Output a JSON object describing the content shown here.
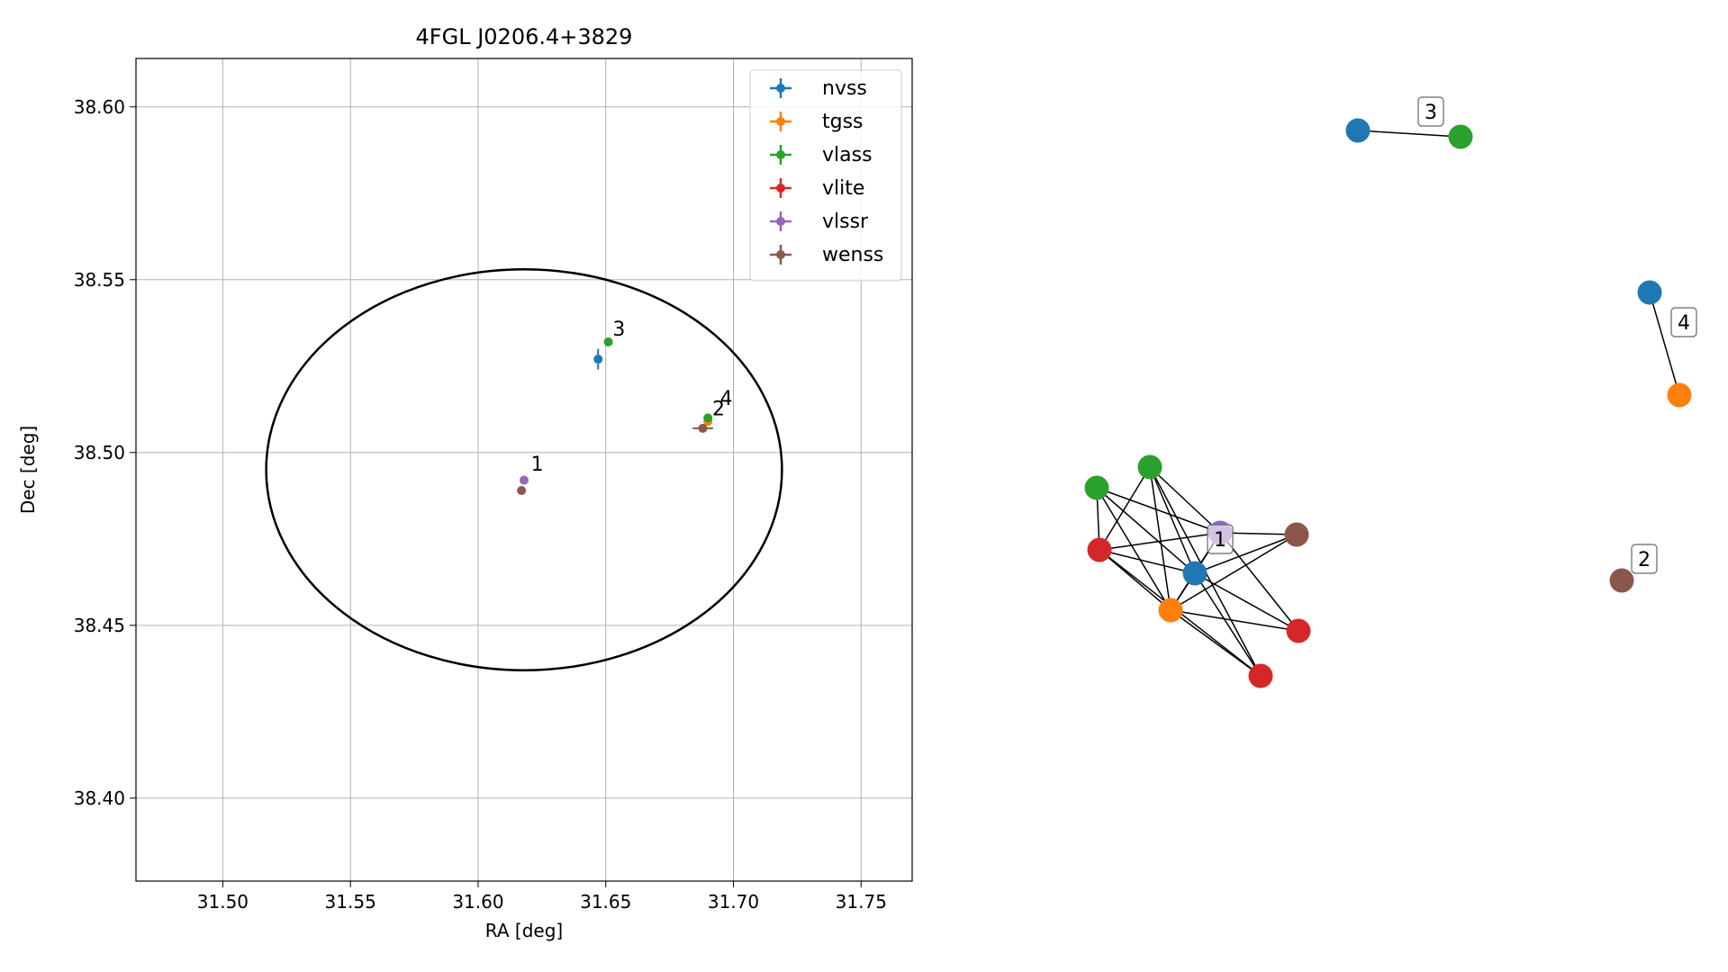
{
  "chart_data": [
    {
      "type": "scatter",
      "title": "4FGL J0206.4+3829",
      "xlabel": "RA [deg]",
      "ylabel": "Dec [deg]",
      "xlim": [
        31.466,
        31.77
      ],
      "ylim": [
        38.376,
        38.614
      ],
      "xticks": [
        31.5,
        31.55,
        31.6,
        31.65,
        31.7,
        31.75
      ],
      "xtick_labels": [
        "31.50",
        "31.55",
        "31.60",
        "31.65",
        "31.70",
        "31.75"
      ],
      "yticks": [
        38.4,
        38.45,
        38.5,
        38.55,
        38.6
      ],
      "ytick_labels": [
        "38.40",
        "38.45",
        "38.50",
        "38.55",
        "38.60"
      ],
      "grid": true,
      "legend_position": "top-right",
      "ellipse": {
        "center": [
          31.618,
          38.495
        ],
        "semi_axis_ra": 0.101,
        "semi_axis_dec": 0.058,
        "color": "#000000"
      },
      "series": [
        {
          "name": "nvss",
          "color": "#1f77b4",
          "points": [
            {
              "x": 31.647,
              "y": 38.527,
              "yerr": 0.003,
              "xerr": 0.001
            }
          ]
        },
        {
          "name": "tgss",
          "color": "#ff7f0e",
          "points": [
            {
              "x": 31.69,
              "y": 38.509,
              "yerr": 0.001,
              "xerr": 0.0005
            }
          ]
        },
        {
          "name": "vlass",
          "color": "#2ca02c",
          "points": [
            {
              "x": 31.651,
              "y": 38.532
            },
            {
              "x": 31.69,
              "y": 38.51
            }
          ]
        },
        {
          "name": "vlite",
          "color": "#d62728",
          "points": []
        },
        {
          "name": "vlssr",
          "color": "#9467bd",
          "points": [
            {
              "x": 31.618,
              "y": 38.492
            }
          ]
        },
        {
          "name": "wenss",
          "color": "#8c564b",
          "points": [
            {
              "x": 31.617,
              "y": 38.489
            },
            {
              "x": 31.688,
              "y": 38.507,
              "xerr": 0.004
            }
          ]
        }
      ],
      "annotations": [
        {
          "text": "1",
          "x": 31.62,
          "y": 38.494
        },
        {
          "text": "2",
          "x": 31.691,
          "y": 38.51
        },
        {
          "text": "3",
          "x": 31.652,
          "y": 38.533
        },
        {
          "text": "4",
          "x": 31.694,
          "y": 38.513
        }
      ]
    },
    {
      "type": "network",
      "nodes": [
        {
          "id": "g",
          "color": "#2ca02c"
        },
        {
          "id": "G",
          "color": "#2ca02c"
        },
        {
          "id": "P",
          "color": "#9467bd"
        },
        {
          "id": "W",
          "color": "#8c564b"
        },
        {
          "id": "R1",
          "color": "#d62728"
        },
        {
          "id": "B",
          "color": "#1f77b4"
        },
        {
          "id": "O",
          "color": "#ff7f0e"
        },
        {
          "id": "R2",
          "color": "#d62728"
        },
        {
          "id": "R3",
          "color": "#d62728"
        },
        {
          "id": "b3",
          "color": "#1f77b4"
        },
        {
          "id": "g3",
          "color": "#2ca02c"
        },
        {
          "id": "b4",
          "color": "#1f77b4"
        },
        {
          "id": "o4",
          "color": "#ff7f0e"
        },
        {
          "id": "w2",
          "color": "#8c564b"
        }
      ],
      "edges": [
        [
          "g",
          "R1"
        ],
        [
          "g",
          "P"
        ],
        [
          "g",
          "O"
        ],
        [
          "g",
          "B"
        ],
        [
          "G",
          "R1"
        ],
        [
          "G",
          "P"
        ],
        [
          "G",
          "B"
        ],
        [
          "G",
          "O"
        ],
        [
          "G",
          "R3"
        ],
        [
          "R1",
          "P"
        ],
        [
          "R1",
          "B"
        ],
        [
          "R1",
          "O"
        ],
        [
          "R1",
          "R3"
        ],
        [
          "P",
          "W"
        ],
        [
          "P",
          "B"
        ],
        [
          "P",
          "O"
        ],
        [
          "P",
          "R2"
        ],
        [
          "W",
          "B"
        ],
        [
          "W",
          "O"
        ],
        [
          "B",
          "O"
        ],
        [
          "B",
          "R2"
        ],
        [
          "B",
          "R3"
        ],
        [
          "O",
          "R2"
        ],
        [
          "O",
          "R3"
        ],
        [
          "b3",
          "g3"
        ],
        [
          "b4",
          "o4"
        ]
      ],
      "labels": [
        {
          "text": "1",
          "node": "P"
        },
        {
          "text": "2",
          "node": "w2"
        },
        {
          "text": "3",
          "node": "b3"
        },
        {
          "text": "4",
          "node": "b4"
        }
      ]
    }
  ]
}
